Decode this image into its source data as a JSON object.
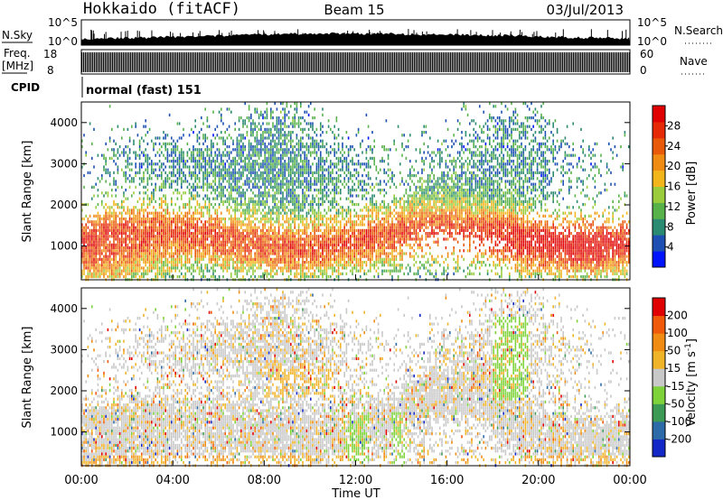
{
  "header": {
    "station": "Hokkaido (fitACF)",
    "beam": "Beam 15",
    "date": "03/Jul/2013"
  },
  "summary_panels": {
    "nsky": {
      "label": "N.Sky",
      "ticks": [
        "10^5",
        "10^0"
      ]
    },
    "nsearch": {
      "label": "N.Search",
      "ticks": [
        "10^5",
        "10^0"
      ]
    },
    "freq": {
      "label_top": "Freq.",
      "label_unit": "[MHz]",
      "ticks": [
        "18",
        "8"
      ]
    },
    "nave": {
      "label": "Nave",
      "ticks": [
        "60",
        "0"
      ]
    },
    "cpid": {
      "label": "CPID",
      "text": "normal (fast) 151"
    }
  },
  "chart_data": [
    {
      "type": "heatmap",
      "name": "power",
      "ylabel": "Slant Range [km]",
      "xlabel": "",
      "yticks": [
        "1000",
        "2000",
        "3000",
        "4000"
      ],
      "yticks_values": [
        1000,
        2000,
        3000,
        4000
      ],
      "ylim": [
        180,
        4500
      ],
      "xlim_hours": [
        0,
        24
      ],
      "colorbar": {
        "label": "Power [dB]",
        "ticks": [
          "4",
          "8",
          "12",
          "16",
          "20",
          "24",
          "28"
        ],
        "range": [
          0,
          32
        ],
        "colors": [
          "#0014ff",
          "#1e50b4",
          "#2b8a72",
          "#58b24a",
          "#9acc3c",
          "#f2b61c",
          "#f08c14",
          "#e85a0a",
          "#e62a08",
          "#e00000"
        ]
      }
    },
    {
      "type": "heatmap",
      "name": "velocity",
      "ylabel": "Slant Range [km]",
      "xlabel": "Time UT",
      "yticks": [
        "1000",
        "2000",
        "3000",
        "4000"
      ],
      "yticks_values": [
        1000,
        2000,
        3000,
        4000
      ],
      "ylim": [
        180,
        4500
      ],
      "xticks": [
        "00:00",
        "04:00",
        "08:00",
        "12:00",
        "16:00",
        "20:00",
        "00:00"
      ],
      "xticks_hours": [
        0,
        4,
        8,
        12,
        16,
        20,
        24
      ],
      "colorbar": {
        "label": "Velocity [m s^-1]",
        "ticks": [
          "200",
          "100",
          "50",
          "15",
          "-15",
          "-50",
          "-100",
          "-200"
        ],
        "colors": [
          "#1428c8",
          "#2d6aa8",
          "#3d9a54",
          "#7ed23a",
          "#c8c8c8",
          "#f0b428",
          "#f08c14",
          "#f05a0a",
          "#e00000"
        ]
      }
    }
  ]
}
